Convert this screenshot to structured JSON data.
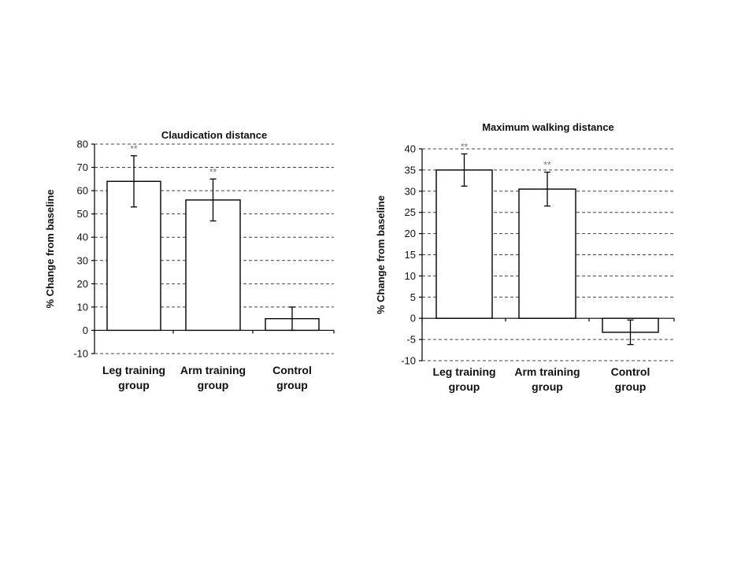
{
  "chart_data": [
    {
      "type": "bar",
      "title": "Claudication distance",
      "ylabel": "% Change from baseline",
      "categories": [
        [
          "Leg training",
          "group"
        ],
        [
          "Arm training",
          "group"
        ],
        [
          "Control",
          "group"
        ]
      ],
      "values": [
        64,
        56,
        5
      ],
      "errors": [
        11,
        9,
        5
      ],
      "annotations": [
        "**",
        "**",
        ""
      ],
      "ylim": [
        -10,
        80
      ],
      "yticks": [
        -10,
        0,
        10,
        20,
        30,
        40,
        50,
        60,
        70,
        80
      ],
      "grid": true
    },
    {
      "type": "bar",
      "title": "Maximum walking distance",
      "ylabel": "% Change from baseline",
      "categories": [
        [
          "Leg training",
          "group"
        ],
        [
          "Arm training",
          "group"
        ],
        [
          "Control",
          "group"
        ]
      ],
      "values": [
        35,
        30.5,
        -3.3
      ],
      "errors": [
        3.8,
        4,
        2.9
      ],
      "annotations": [
        "**",
        "**",
        ""
      ],
      "ylim": [
        -10,
        40
      ],
      "yticks": [
        -10,
        -5,
        0,
        5,
        10,
        15,
        20,
        25,
        30,
        35,
        40
      ],
      "grid": true
    }
  ]
}
